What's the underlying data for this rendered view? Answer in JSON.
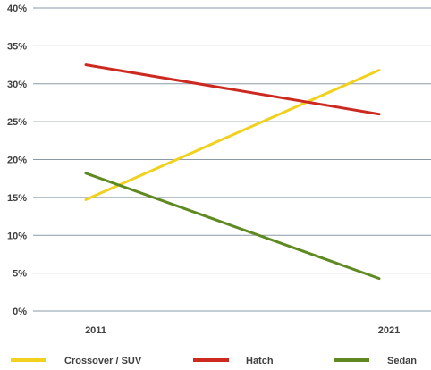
{
  "chart_data": {
    "type": "line",
    "title": "",
    "xlabel": "",
    "ylabel": "",
    "categories": [
      "2011",
      "2021"
    ],
    "ylim": [
      0,
      40
    ],
    "y_ticks": [
      "0%",
      "5%",
      "10%",
      "15%",
      "20%",
      "25%",
      "30%",
      "35%",
      "40%"
    ],
    "grid": true,
    "legend_position": "bottom",
    "series": [
      {
        "name": "Crossover / SUV",
        "values": [
          14.7,
          31.8
        ],
        "color": "#f0d11e"
      },
      {
        "name": "Hatch",
        "values": [
          32.5,
          26.0
        ],
        "color": "#cc2a20"
      },
      {
        "name": "Sedan",
        "values": [
          18.2,
          4.3
        ],
        "color": "#5f8a22"
      }
    ]
  }
}
